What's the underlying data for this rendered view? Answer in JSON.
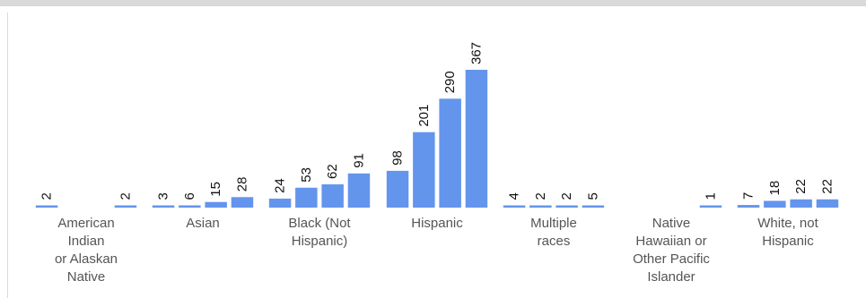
{
  "chart_data": {
    "type": "bar",
    "title": "",
    "xlabel": "",
    "ylabel": "",
    "ylim": [
      0,
      367
    ],
    "grid": false,
    "bar_color": "#6495ed",
    "groups": [
      {
        "category": "American Indian or Alaskan Native",
        "label_lines": [
          "American",
          "Indian",
          "or Alaskan",
          "Native"
        ],
        "values": [
          2,
          null,
          null,
          2
        ]
      },
      {
        "category": "Asian",
        "label_lines": [
          "Asian"
        ],
        "values": [
          3,
          6,
          15,
          28
        ]
      },
      {
        "category": "Black (Not Hispanic)",
        "label_lines": [
          "Black (Not",
          "Hispanic)"
        ],
        "values": [
          24,
          53,
          62,
          91
        ]
      },
      {
        "category": "Hispanic",
        "label_lines": [
          "Hispanic"
        ],
        "values": [
          98,
          201,
          290,
          367
        ]
      },
      {
        "category": "Multiple races",
        "label_lines": [
          "Multiple",
          "races"
        ],
        "values": [
          4,
          2,
          2,
          5
        ]
      },
      {
        "category": "Native Hawaiian or Other Pacific Islander",
        "label_lines": [
          "Native",
          "Hawaiian or",
          "Other Pacific",
          "Islander"
        ],
        "values": [
          null,
          null,
          null,
          1
        ]
      },
      {
        "category": "White, not Hispanic",
        "label_lines": [
          "White, not",
          "Hispanic"
        ],
        "values": [
          7,
          18,
          22,
          22
        ]
      }
    ]
  }
}
